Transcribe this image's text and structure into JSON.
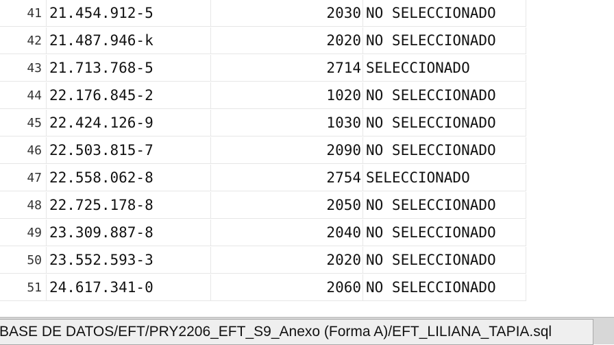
{
  "rows": [
    {
      "num": "41",
      "rut": "21.454.912-5",
      "code": "2030",
      "status": "NO SELECCIONADO"
    },
    {
      "num": "42",
      "rut": "21.487.946-k",
      "code": "2020",
      "status": "NO SELECCIONADO"
    },
    {
      "num": "43",
      "rut": "21.713.768-5",
      "code": "2714",
      "status": "SELECCIONADO"
    },
    {
      "num": "44",
      "rut": "22.176.845-2",
      "code": "1020",
      "status": "NO SELECCIONADO"
    },
    {
      "num": "45",
      "rut": "22.424.126-9",
      "code": "1030",
      "status": "NO SELECCIONADO"
    },
    {
      "num": "46",
      "rut": "22.503.815-7",
      "code": "2090",
      "status": "NO SELECCIONADO"
    },
    {
      "num": "47",
      "rut": "22.558.062-8",
      "code": "2754",
      "status": "SELECCIONADO"
    },
    {
      "num": "48",
      "rut": "22.725.178-8",
      "code": "2050",
      "status": "NO SELECCIONADO"
    },
    {
      "num": "49",
      "rut": "23.309.887-8",
      "code": "2040",
      "status": "NO SELECCIONADO"
    },
    {
      "num": "50",
      "rut": "23.552.593-3",
      "code": "2020",
      "status": "NO SELECCIONADO"
    },
    {
      "num": "51",
      "rut": "24.617.341-0",
      "code": "2060",
      "status": "NO SELECCIONADO"
    }
  ],
  "statusbar": {
    "file_path": "BASE DE DATOS/EFT/PRY2206_EFT_S9_Anexo (Forma A)/EFT_LILIANA_TAPIA.sql"
  }
}
